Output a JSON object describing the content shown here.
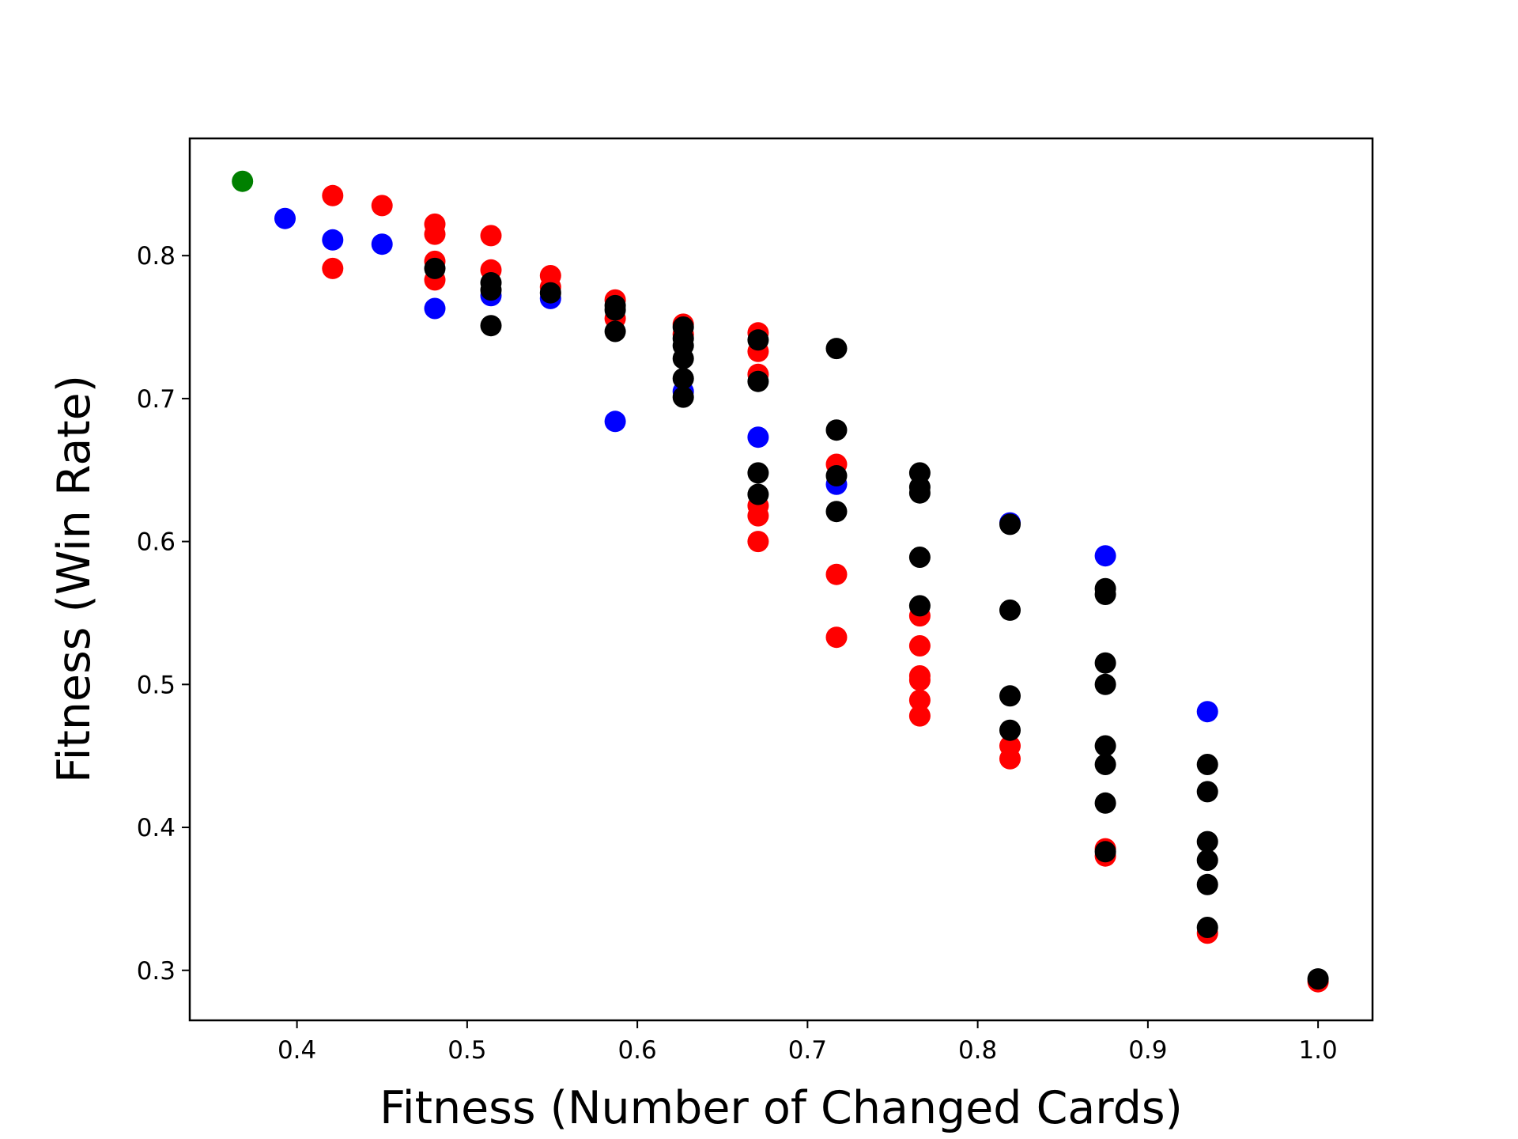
{
  "chart_data": {
    "type": "scatter",
    "xlabel": "Fitness (Number of Changed Cards)",
    "ylabel": "Fitness (Win Rate)",
    "xlim": [
      0.337,
      1.032
    ],
    "ylim": [
      0.265,
      0.882
    ],
    "xticks": [
      0.4,
      0.5,
      0.6,
      0.7,
      0.8,
      0.9,
      1.0
    ],
    "xtick_labels": [
      "0.4",
      "0.5",
      "0.6",
      "0.7",
      "0.8",
      "0.9",
      "1.0"
    ],
    "yticks": [
      0.3,
      0.4,
      0.5,
      0.6,
      0.7,
      0.8
    ],
    "ytick_labels": [
      "0.3",
      "0.4",
      "0.5",
      "0.6",
      "0.7",
      "0.8"
    ],
    "grid": false,
    "legend": "none",
    "series": [
      {
        "color": "#ff0000",
        "points": [
          [
            0.421,
            0.842
          ],
          [
            0.421,
            0.791
          ],
          [
            0.45,
            0.835
          ],
          [
            0.481,
            0.822
          ],
          [
            0.481,
            0.815
          ],
          [
            0.481,
            0.796
          ],
          [
            0.481,
            0.783
          ],
          [
            0.514,
            0.814
          ],
          [
            0.514,
            0.79
          ],
          [
            0.549,
            0.786
          ],
          [
            0.549,
            0.778
          ],
          [
            0.587,
            0.769
          ],
          [
            0.587,
            0.756
          ],
          [
            0.627,
            0.752
          ],
          [
            0.627,
            0.745
          ],
          [
            0.671,
            0.746
          ],
          [
            0.671,
            0.733
          ],
          [
            0.671,
            0.717
          ],
          [
            0.671,
            0.625
          ],
          [
            0.671,
            0.618
          ],
          [
            0.671,
            0.6
          ],
          [
            0.717,
            0.654
          ],
          [
            0.717,
            0.577
          ],
          [
            0.717,
            0.533
          ],
          [
            0.766,
            0.548
          ],
          [
            0.766,
            0.527
          ],
          [
            0.766,
            0.506
          ],
          [
            0.766,
            0.503
          ],
          [
            0.766,
            0.489
          ],
          [
            0.766,
            0.478
          ],
          [
            0.819,
            0.457
          ],
          [
            0.819,
            0.448
          ],
          [
            0.875,
            0.385
          ],
          [
            0.875,
            0.38
          ],
          [
            0.935,
            0.326
          ],
          [
            1.0,
            0.292
          ]
        ]
      },
      {
        "color": "#0000ff",
        "points": [
          [
            0.393,
            0.826
          ],
          [
            0.421,
            0.811
          ],
          [
            0.45,
            0.808
          ],
          [
            0.481,
            0.763
          ],
          [
            0.514,
            0.772
          ],
          [
            0.549,
            0.77
          ],
          [
            0.587,
            0.684
          ],
          [
            0.627,
            0.705
          ],
          [
            0.671,
            0.673
          ],
          [
            0.717,
            0.64
          ],
          [
            0.819,
            0.613
          ],
          [
            0.875,
            0.59
          ],
          [
            0.935,
            0.481
          ]
        ]
      },
      {
        "color": "#008000",
        "points": [
          [
            0.368,
            0.852
          ]
        ]
      },
      {
        "color": "#000000",
        "points": [
          [
            0.481,
            0.791
          ],
          [
            0.514,
            0.781
          ],
          [
            0.514,
            0.776
          ],
          [
            0.514,
            0.751
          ],
          [
            0.549,
            0.774
          ],
          [
            0.587,
            0.765
          ],
          [
            0.587,
            0.762
          ],
          [
            0.587,
            0.747
          ],
          [
            0.627,
            0.75
          ],
          [
            0.627,
            0.742
          ],
          [
            0.627,
            0.737
          ],
          [
            0.627,
            0.728
          ],
          [
            0.627,
            0.714
          ],
          [
            0.627,
            0.701
          ],
          [
            0.671,
            0.741
          ],
          [
            0.671,
            0.712
          ],
          [
            0.671,
            0.648
          ],
          [
            0.671,
            0.633
          ],
          [
            0.717,
            0.735
          ],
          [
            0.717,
            0.678
          ],
          [
            0.717,
            0.646
          ],
          [
            0.717,
            0.621
          ],
          [
            0.766,
            0.648
          ],
          [
            0.766,
            0.638
          ],
          [
            0.766,
            0.634
          ],
          [
            0.766,
            0.589
          ],
          [
            0.766,
            0.555
          ],
          [
            0.819,
            0.612
          ],
          [
            0.819,
            0.552
          ],
          [
            0.819,
            0.492
          ],
          [
            0.819,
            0.468
          ],
          [
            0.875,
            0.567
          ],
          [
            0.875,
            0.563
          ],
          [
            0.875,
            0.515
          ],
          [
            0.875,
            0.5
          ],
          [
            0.875,
            0.457
          ],
          [
            0.875,
            0.444
          ],
          [
            0.875,
            0.417
          ],
          [
            0.875,
            0.383
          ],
          [
            0.935,
            0.444
          ],
          [
            0.935,
            0.425
          ],
          [
            0.935,
            0.39
          ],
          [
            0.935,
            0.377
          ],
          [
            0.935,
            0.36
          ],
          [
            0.935,
            0.33
          ],
          [
            1.0,
            0.294
          ]
        ]
      }
    ]
  }
}
